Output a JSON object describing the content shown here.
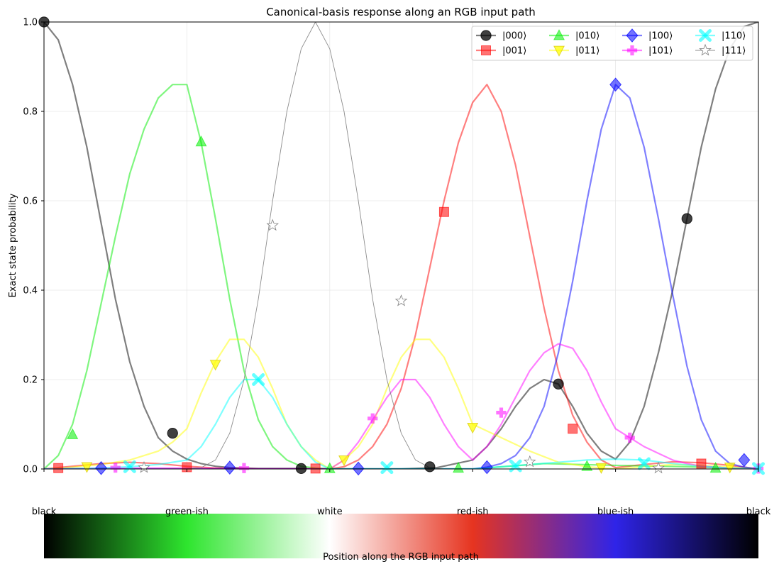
{
  "chart_data": {
    "type": "line",
    "title": "Canonical-basis response along an RGB input path",
    "ylabel": "Exact state probability",
    "xlabel": "Position along the RGB input path",
    "ylim": [
      0,
      1.0
    ],
    "xlim": [
      0,
      1
    ],
    "yticks": [
      "0.0",
      "0.2",
      "0.4",
      "0.6",
      "0.8",
      "1.0"
    ],
    "grid": true,
    "legend_position": "top-right",
    "legend_columns": 4,
    "x_positions": [
      0,
      0.2,
      0.4,
      0.6,
      0.8,
      1.0
    ],
    "colorbar": {
      "labels": [
        "black",
        "green-ish",
        "white",
        "red-ish",
        "blue-ish",
        "black"
      ],
      "stops": [
        "#000000",
        "#2ee52e",
        "#ffffff",
        "#e63420",
        "#2f24e8",
        "#000000"
      ]
    },
    "series": [
      {
        "name": "|000⟩",
        "color": "#000000",
        "marker": "circle",
        "width": 2.2,
        "x": [
          0,
          0.02,
          0.04,
          0.06,
          0.08,
          0.1,
          0.12,
          0.14,
          0.16,
          0.18,
          0.2,
          0.22,
          0.24,
          0.26,
          0.3,
          0.35,
          0.4,
          0.45,
          0.5,
          0.55,
          0.6,
          0.62,
          0.64,
          0.66,
          0.68,
          0.7,
          0.72,
          0.74,
          0.76,
          0.78,
          0.8,
          0.82,
          0.84,
          0.86,
          0.88,
          0.9,
          0.92,
          0.94,
          0.96,
          0.98,
          1.0
        ],
        "y": [
          1.0,
          0.96,
          0.86,
          0.72,
          0.55,
          0.38,
          0.24,
          0.14,
          0.07,
          0.04,
          0.022,
          0.012,
          0.006,
          0.003,
          0.001,
          0.001,
          0.0,
          0.0,
          0.0,
          0.003,
          0.02,
          0.05,
          0.09,
          0.14,
          0.18,
          0.2,
          0.19,
          0.14,
          0.08,
          0.04,
          0.022,
          0.06,
          0.14,
          0.26,
          0.4,
          0.56,
          0.72,
          0.85,
          0.94,
          0.99,
          1.0
        ],
        "markers_x": [
          0.0,
          0.18,
          0.36,
          0.54,
          0.72,
          0.9
        ],
        "markers_y": [
          1.0,
          0.08,
          0.001,
          0.005,
          0.19,
          0.56
        ]
      },
      {
        "name": "|001⟩",
        "color": "#ff0000",
        "marker": "square",
        "width": 2.2,
        "x": [
          0,
          0.04,
          0.08,
          0.12,
          0.16,
          0.2,
          0.24,
          0.3,
          0.35,
          0.4,
          0.42,
          0.44,
          0.46,
          0.48,
          0.5,
          0.52,
          0.54,
          0.56,
          0.58,
          0.6,
          0.62,
          0.64,
          0.66,
          0.68,
          0.7,
          0.72,
          0.74,
          0.76,
          0.78,
          0.8,
          0.84,
          0.88,
          0.92,
          0.96,
          1.0
        ],
        "y": [
          0.0,
          0.006,
          0.012,
          0.015,
          0.012,
          0.006,
          0.002,
          0.0,
          0.0,
          0.0,
          0.005,
          0.02,
          0.05,
          0.1,
          0.18,
          0.3,
          0.45,
          0.6,
          0.73,
          0.82,
          0.86,
          0.8,
          0.68,
          0.52,
          0.36,
          0.22,
          0.12,
          0.06,
          0.02,
          0.003,
          0.01,
          0.016,
          0.014,
          0.008,
          0.0
        ],
        "markers_x": [
          0.02,
          0.2,
          0.38,
          0.56,
          0.74,
          0.92
        ],
        "markers_y": [
          0.002,
          0.004,
          0.001,
          0.575,
          0.09,
          0.012
        ]
      },
      {
        "name": "|010⟩",
        "color": "#00ee00",
        "marker": "triangle-up",
        "width": 2.2,
        "x": [
          0,
          0.02,
          0.04,
          0.06,
          0.08,
          0.1,
          0.12,
          0.14,
          0.16,
          0.18,
          0.2,
          0.22,
          0.24,
          0.26,
          0.28,
          0.3,
          0.32,
          0.34,
          0.36,
          0.38,
          0.4,
          0.5,
          0.6,
          0.7,
          0.8,
          0.9,
          1.0
        ],
        "y": [
          0.0,
          0.03,
          0.1,
          0.22,
          0.37,
          0.52,
          0.66,
          0.76,
          0.83,
          0.86,
          0.86,
          0.73,
          0.56,
          0.38,
          0.22,
          0.11,
          0.05,
          0.02,
          0.006,
          0.002,
          0.0,
          0.0,
          0.0,
          0.012,
          0.008,
          0.005,
          0.0
        ],
        "markers_x": [
          0.04,
          0.22,
          0.4,
          0.58,
          0.76,
          0.94
        ],
        "markers_y": [
          0.077,
          0.732,
          0.001,
          0.002,
          0.006,
          0.002
        ]
      },
      {
        "name": "|011⟩",
        "color": "#ffff00",
        "marker": "triangle-down",
        "width": 2.2,
        "x": [
          0,
          0.04,
          0.08,
          0.12,
          0.16,
          0.18,
          0.2,
          0.22,
          0.24,
          0.26,
          0.28,
          0.3,
          0.32,
          0.34,
          0.36,
          0.38,
          0.4,
          0.42,
          0.44,
          0.46,
          0.48,
          0.5,
          0.52,
          0.54,
          0.56,
          0.58,
          0.6,
          0.64,
          0.68,
          0.72,
          0.76,
          0.8,
          0.84,
          0.88,
          0.92,
          0.96,
          1.0
        ],
        "y": [
          0.0,
          0.004,
          0.01,
          0.02,
          0.04,
          0.06,
          0.09,
          0.17,
          0.24,
          0.29,
          0.29,
          0.25,
          0.18,
          0.1,
          0.05,
          0.02,
          0.0,
          0.02,
          0.05,
          0.1,
          0.18,
          0.25,
          0.29,
          0.29,
          0.25,
          0.18,
          0.1,
          0.07,
          0.04,
          0.015,
          0.005,
          0.0,
          0.005,
          0.01,
          0.008,
          0.004,
          0.0
        ],
        "markers_x": [
          0.06,
          0.24,
          0.42,
          0.6,
          0.78,
          0.96
        ],
        "markers_y": [
          0.005,
          0.234,
          0.02,
          0.093,
          0.003,
          0.004
        ]
      },
      {
        "name": "|100⟩",
        "color": "#0000ff",
        "marker": "diamond",
        "width": 2.2,
        "x": [
          0,
          0.1,
          0.2,
          0.3,
          0.4,
          0.5,
          0.6,
          0.62,
          0.64,
          0.66,
          0.68,
          0.7,
          0.72,
          0.74,
          0.76,
          0.78,
          0.8,
          0.82,
          0.84,
          0.86,
          0.88,
          0.9,
          0.92,
          0.94,
          0.96,
          0.98,
          1.0
        ],
        "y": [
          0.0,
          0.0,
          0.0,
          0.0,
          0.0,
          0.0,
          0.0,
          0.004,
          0.012,
          0.03,
          0.07,
          0.14,
          0.26,
          0.42,
          0.6,
          0.76,
          0.86,
          0.83,
          0.72,
          0.56,
          0.39,
          0.23,
          0.11,
          0.04,
          0.012,
          0.004,
          0.0
        ],
        "markers_x": [
          0.08,
          0.26,
          0.44,
          0.62,
          0.8,
          0.98
        ],
        "markers_y": [
          0.002,
          0.003,
          0.001,
          0.004,
          0.86,
          0.02
        ]
      },
      {
        "name": "|101⟩",
        "color": "#ff00ff",
        "marker": "plus",
        "width": 2.2,
        "x": [
          0,
          0.1,
          0.2,
          0.3,
          0.4,
          0.42,
          0.44,
          0.46,
          0.48,
          0.5,
          0.52,
          0.54,
          0.56,
          0.58,
          0.6,
          0.62,
          0.64,
          0.66,
          0.68,
          0.7,
          0.72,
          0.74,
          0.76,
          0.78,
          0.8,
          0.82,
          0.84,
          0.86,
          0.88,
          0.9,
          0.92,
          0.94,
          0.96,
          0.98,
          1.0
        ],
        "y": [
          0.0,
          0.002,
          0.002,
          0.0,
          0.0,
          0.02,
          0.06,
          0.11,
          0.16,
          0.2,
          0.2,
          0.16,
          0.1,
          0.05,
          0.02,
          0.05,
          0.1,
          0.16,
          0.22,
          0.26,
          0.28,
          0.27,
          0.22,
          0.15,
          0.09,
          0.07,
          0.05,
          0.035,
          0.02,
          0.012,
          0.006,
          0.004,
          0.002,
          0.0,
          0.0
        ],
        "markers_x": [
          0.1,
          0.28,
          0.46,
          0.64,
          0.82,
          1.0
        ],
        "markers_y": [
          0.003,
          0.002,
          0.113,
          0.126,
          0.07,
          0.001
        ]
      },
      {
        "name": "|110⟩",
        "color": "#00ffff",
        "marker": "x",
        "width": 2.2,
        "x": [
          0,
          0.08,
          0.12,
          0.16,
          0.2,
          0.22,
          0.24,
          0.26,
          0.28,
          0.3,
          0.32,
          0.34,
          0.36,
          0.38,
          0.4,
          0.5,
          0.6,
          0.64,
          0.68,
          0.72,
          0.76,
          0.8,
          0.84,
          0.88,
          0.92,
          0.96,
          1.0
        ],
        "y": [
          0.0,
          0.002,
          0.005,
          0.01,
          0.02,
          0.05,
          0.1,
          0.16,
          0.2,
          0.2,
          0.16,
          0.1,
          0.05,
          0.015,
          0.0,
          0.0,
          0.0,
          0.005,
          0.01,
          0.015,
          0.02,
          0.022,
          0.02,
          0.012,
          0.006,
          0.002,
          0.0
        ],
        "markers_x": [
          0.12,
          0.3,
          0.48,
          0.66,
          0.84,
          1.0
        ],
        "markers_y": [
          0.005,
          0.2,
          0.003,
          0.007,
          0.012,
          0.001
        ]
      },
      {
        "name": "|111⟩",
        "color": "#808080",
        "marker": "star",
        "width": 0.9,
        "x": [
          0,
          0.2,
          0.22,
          0.24,
          0.26,
          0.28,
          0.3,
          0.32,
          0.34,
          0.36,
          0.38,
          0.4,
          0.42,
          0.44,
          0.46,
          0.48,
          0.5,
          0.52,
          0.54,
          0.56,
          0.58,
          0.6,
          0.7,
          0.8,
          1.0
        ],
        "y": [
          0.0,
          0.0,
          0.003,
          0.02,
          0.08,
          0.2,
          0.38,
          0.6,
          0.8,
          0.94,
          1.0,
          0.94,
          0.8,
          0.6,
          0.38,
          0.2,
          0.08,
          0.02,
          0.003,
          0.0,
          0.0,
          0.0,
          0.0,
          0.0,
          0.0
        ],
        "markers_x": [
          0.14,
          0.32,
          0.5,
          0.68,
          0.86
        ],
        "markers_y": [
          0.003,
          0.545,
          0.376,
          0.016,
          0.002
        ]
      }
    ]
  }
}
